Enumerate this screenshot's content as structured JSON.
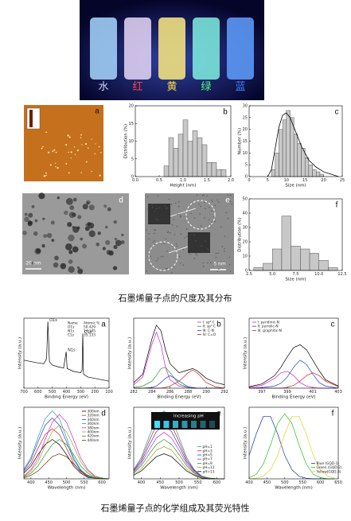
{
  "photo": {
    "labels": [
      "水",
      "红",
      "黄",
      "绿",
      "蓝"
    ]
  },
  "images": [
    {
      "label": "a"
    },
    {
      "label": "d",
      "scale_bar": "20 nm"
    },
    {
      "label": "e",
      "scale_bar": "5 nm"
    }
  ],
  "captions": [
    "石墨烯量子点的尺度及其分布",
    "石墨烯量子点的化学组成及其荧光特性"
  ],
  "chart_data": [
    {
      "type": "histogram",
      "label": "b",
      "xlabel": "Height (nm)",
      "ylabel": "Distribution (%)",
      "bins": [
        0.6,
        0.7,
        0.8,
        0.9,
        1.0,
        1.1,
        1.2,
        1.3,
        1.4,
        1.5,
        1.6,
        1.7,
        1.8,
        1.9
      ],
      "values": [
        3,
        11,
        8,
        12,
        16,
        10,
        13,
        11,
        9,
        4,
        4,
        2,
        2
      ],
      "color": "#c8c8c8",
      "xlim": [
        0,
        2
      ],
      "xticks": [
        {
          "value": 0,
          "label": "0.0"
        },
        0.5,
        {
          "value": 1,
          "label": "1.0"
        },
        1.5,
        {
          "value": 2,
          "label": "2.0"
        }
      ],
      "ylim": [
        0,
        20
      ],
      "yticks": [
        0,
        5,
        10,
        15,
        20
      ]
    },
    {
      "type": "histogram",
      "label": "c",
      "xlabel": "Size (nm)",
      "ylabel": "Number (%)",
      "bins": [
        6,
        7,
        8,
        9,
        10,
        11,
        12,
        13,
        14,
        15,
        16,
        17,
        18,
        19,
        20
      ],
      "values": [
        3,
        10,
        20,
        24,
        28,
        25,
        18,
        14,
        12,
        8,
        5,
        3,
        2,
        1
      ],
      "color": "#c8c8c8",
      "fit": {
        "x": [
          5,
          6,
          7,
          8,
          9,
          10,
          11,
          12,
          13,
          14,
          15,
          16,
          18,
          20,
          22,
          24
        ],
        "values": [
          0,
          3,
          12,
          21,
          26,
          27,
          25,
          21,
          17,
          13,
          10,
          7,
          4,
          2,
          1,
          0
        ],
        "color": "#000000"
      },
      "xlim": [
        0,
        25
      ],
      "xticks": [
        0,
        5,
        10,
        15,
        20,
        25
      ],
      "ylim": [
        0,
        30
      ],
      "yticks": [
        0,
        5,
        10,
        15,
        20,
        25,
        30
      ]
    },
    {
      "type": "histogram",
      "label": "f",
      "xlabel": "Size (nm)",
      "ylabel": "Distribution (%)",
      "bins": [
        3,
        4,
        5,
        6,
        7,
        8,
        9,
        10,
        11,
        12
      ],
      "values": [
        2,
        5,
        15,
        38,
        17,
        15,
        12,
        7,
        2
      ],
      "color": "#c8c8c8",
      "xlim": [
        2.5,
        12.5
      ],
      "xticks": [
        2.5,
        {
          "value": 5,
          "label": "5.0"
        },
        7.5,
        {
          "value": 10,
          "label": "10.0"
        },
        12.5
      ],
      "ylim": [
        0,
        50
      ],
      "yticks": [
        0,
        10,
        20,
        30,
        40,
        50
      ]
    },
    {
      "type": "line",
      "label": "a",
      "xlabel": "Binding Energy (eV)",
      "ylabel": "Intensity (a.u.)",
      "x": [
        700,
        650,
        600,
        560,
        540,
        531,
        520,
        500,
        450,
        420,
        402,
        395,
        350,
        300,
        290,
        285,
        280,
        250,
        200,
        150,
        100
      ],
      "series": [
        {
          "color": "#000000",
          "values": [
            40,
            38,
            36,
            35,
            42,
            95,
            38,
            33,
            30,
            29,
            52,
            28,
            24,
            22,
            26,
            78,
            20,
            16,
            14,
            12,
            10
          ]
        }
      ],
      "peak_labels": [
        "O1s",
        "N1s",
        "C1s"
      ],
      "inset": {
        "header": [
          "Name",
          "Atomic %"
        ],
        "rows": [
          [
            "O1s",
            50.429
          ],
          [
            "N1s",
            14.345
          ],
          [
            "C1s",
            35.133
          ]
        ]
      },
      "xlim": [
        700,
        100
      ],
      "xticks": [
        700,
        600,
        500,
        400,
        300,
        200,
        100
      ],
      "ylim": [
        0,
        100
      ]
    },
    {
      "type": "line",
      "label": "b",
      "xlabel": "Binding Energy (eV)",
      "ylabel": "Intensity (a.u.)",
      "legend": "upper right",
      "x": [
        282,
        283,
        284,
        284.5,
        285,
        285.5,
        286,
        287,
        288,
        288.5,
        289,
        290,
        291,
        292
      ],
      "series": [
        {
          "color": "#000000",
          "values": [
            8,
            20,
            70,
            90,
            82,
            55,
            35,
            22,
            26,
            28,
            25,
            14,
            8,
            5
          ]
        },
        {
          "name": "I: sp² C",
          "color": "#d020d0",
          "values": [
            5,
            16,
            62,
            80,
            62,
            30,
            12,
            3,
            1,
            1,
            0,
            0,
            0,
            0
          ]
        },
        {
          "name": "II: sp³ C",
          "color": "#20a020",
          "values": [
            1,
            3,
            10,
            18,
            28,
            30,
            22,
            6,
            1,
            0,
            0,
            0,
            0,
            0
          ]
        },
        {
          "name": "III: C-N",
          "color": "#2040d0",
          "values": [
            0,
            0,
            1,
            3,
            8,
            14,
            18,
            10,
            2,
            1,
            0,
            0,
            0,
            0
          ]
        },
        {
          "name": "IV: C=O",
          "color": "#d02020",
          "values": [
            0,
            0,
            0,
            0,
            0,
            1,
            3,
            10,
            22,
            26,
            22,
            8,
            2,
            0
          ]
        }
      ],
      "xlim": [
        282,
        292
      ],
      "xticks": [
        282,
        284,
        286,
        288,
        290,
        292
      ],
      "ylim": [
        0,
        100
      ]
    },
    {
      "type": "line",
      "label": "c",
      "xlabel": "Binding Energy (eV)",
      "ylabel": "Intensity (a.u.)",
      "legend": "upper left",
      "x": [
        396,
        397,
        398,
        398.5,
        399,
        399.5,
        400,
        400.5,
        401,
        401.5,
        402,
        403
      ],
      "series": [
        {
          "color": "#000000",
          "values": [
            2,
            6,
            18,
            30,
            45,
            58,
            62,
            55,
            40,
            25,
            12,
            3
          ]
        },
        {
          "name": "I: pyridinic-N",
          "color": "#d020d0",
          "values": [
            1,
            4,
            14,
            22,
            24,
            18,
            8,
            3,
            1,
            0,
            0,
            0
          ]
        },
        {
          "name": "II: pyrrolic-N",
          "color": "#2040d0",
          "values": [
            0,
            1,
            3,
            7,
            16,
            30,
            40,
            34,
            20,
            8,
            3,
            0
          ]
        },
        {
          "name": "III: graphitic-N",
          "color": "#d02020",
          "values": [
            0,
            0,
            0,
            0,
            1,
            4,
            10,
            18,
            22,
            18,
            10,
            2
          ]
        }
      ],
      "xlim": [
        396,
        403
      ],
      "xticks": [
        397,
        399,
        401,
        403
      ],
      "ylim": [
        0,
        100
      ]
    },
    {
      "type": "line",
      "label": "d",
      "xlabel": "Wavelength (nm)",
      "ylabel": "Intensity (a.u.)",
      "legend": "upper right",
      "x": [
        380,
        400,
        420,
        440,
        460,
        480,
        500,
        520,
        540,
        560,
        580,
        600,
        620
      ],
      "series": [
        {
          "name": "300nm",
          "color": "#000000",
          "values": [
            8,
            18,
            34,
            48,
            55,
            48,
            34,
            18,
            8,
            2,
            1,
            0,
            0
          ]
        },
        {
          "name": "320nm",
          "color": "#d02020",
          "values": [
            10,
            22,
            43,
            62,
            70,
            62,
            43,
            22,
            10,
            3,
            1,
            0,
            0
          ]
        },
        {
          "name": "340nm",
          "color": "#2040d0",
          "values": [
            12,
            27,
            52,
            75,
            85,
            75,
            52,
            27,
            12,
            3,
            1,
            0,
            0
          ]
        },
        {
          "name": "360nm",
          "color": "#20a0a0",
          "values": [
            13,
            30,
            58,
            84,
            95,
            84,
            58,
            30,
            13,
            4,
            1,
            0,
            0
          ]
        },
        {
          "name": "380nm",
          "color": "#d020d0",
          "values": [
            4,
            13,
            29,
            55,
            79,
            90,
            79,
            55,
            29,
            13,
            4,
            1,
            0
          ]
        },
        {
          "name": "400nm",
          "color": "#a0a020",
          "values": [
            3,
            11,
            24,
            46,
            66,
            75,
            66,
            46,
            24,
            11,
            3,
            1,
            0
          ]
        },
        {
          "name": "420nm",
          "color": "#20a020",
          "values": [
            2,
            8,
            18,
            34,
            48,
            55,
            48,
            34,
            18,
            8,
            2,
            1,
            0
          ]
        },
        {
          "name": "440nm",
          "color": "#803000",
          "values": [
            1,
            5,
            11,
            21,
            31,
            35,
            31,
            21,
            11,
            5,
            1,
            0,
            0
          ]
        }
      ],
      "xlim": [
        380,
        620
      ],
      "xticks": [
        400,
        450,
        500,
        550,
        600
      ],
      "ylim": [
        0,
        100
      ]
    },
    {
      "type": "line",
      "label": "e",
      "xlabel": "Wavelength (nm)",
      "ylabel": "Intensity (a.u.)",
      "legend": "lower right",
      "inset_text": "Increasing pH",
      "x": [
        380,
        400,
        420,
        440,
        460,
        480,
        500,
        520,
        540,
        560,
        580,
        600,
        620
      ],
      "series": [
        {
          "name": "pH=1",
          "color": "#20a0a0",
          "values": [
            13,
            30,
            58,
            84,
            95,
            84,
            58,
            30,
            13,
            4,
            1,
            0,
            0
          ]
        },
        {
          "name": "pH=3",
          "color": "#d02020",
          "values": [
            12,
            27,
            52,
            75,
            85,
            75,
            52,
            27,
            12,
            3,
            1,
            0,
            0
          ]
        },
        {
          "name": "pH=5",
          "color": "#2040d0",
          "values": [
            11,
            24,
            46,
            66,
            75,
            66,
            46,
            24,
            11,
            3,
            1,
            0,
            0
          ]
        },
        {
          "name": "pH=7",
          "color": "#d020d0",
          "values": [
            9,
            21,
            40,
            57,
            65,
            57,
            40,
            21,
            9,
            3,
            1,
            0,
            0
          ]
        },
        {
          "name": "pH=9",
          "color": "#20a020",
          "values": [
            8,
            18,
            34,
            48,
            55,
            48,
            34,
            18,
            8,
            2,
            1,
            0,
            0
          ]
        },
        {
          "name": "pH=11",
          "color": "#a0a020",
          "values": [
            6,
            14,
            27,
            40,
            45,
            40,
            27,
            14,
            6,
            2,
            0,
            0,
            0
          ]
        },
        {
          "name": "pH=13",
          "color": "#000000",
          "values": [
            5,
            11,
            21,
            31,
            35,
            31,
            21,
            11,
            5,
            1,
            0,
            0,
            0
          ]
        }
      ],
      "xlim": [
        380,
        620
      ],
      "xticks": [
        400,
        450,
        500,
        550,
        600
      ],
      "ylim": [
        0,
        100
      ]
    },
    {
      "type": "line",
      "label": "f",
      "xlabel": "Wavelength (nm)",
      "ylabel": "Intensity (a.u.)",
      "legend": "lower right",
      "x": [
        400,
        420,
        440,
        460,
        480,
        500,
        520,
        540,
        560,
        580,
        600,
        620,
        640
      ],
      "series": [
        {
          "name": "Blue (GQD-1)",
          "color": "#1030b0",
          "values": [
            36,
            69,
            96,
            96,
            69,
            36,
            14,
            4,
            1,
            0,
            0,
            0,
            0
          ]
        },
        {
          "name": "Green (GQD-2)",
          "color": "#20c020",
          "values": [
            2,
            7,
            23,
            52,
            85,
            100,
            85,
            52,
            23,
            7,
            2,
            0,
            0
          ]
        },
        {
          "name": "Yellow(GQD-3)",
          "color": "#e0d020",
          "values": [
            0,
            1,
            4,
            14,
            36,
            69,
            96,
            96,
            69,
            36,
            14,
            4,
            1
          ]
        }
      ],
      "xlim": [
        400,
        650
      ],
      "xticks": [
        400,
        450,
        500,
        550,
        600,
        650
      ],
      "ylim": [
        0,
        110
      ]
    }
  ]
}
